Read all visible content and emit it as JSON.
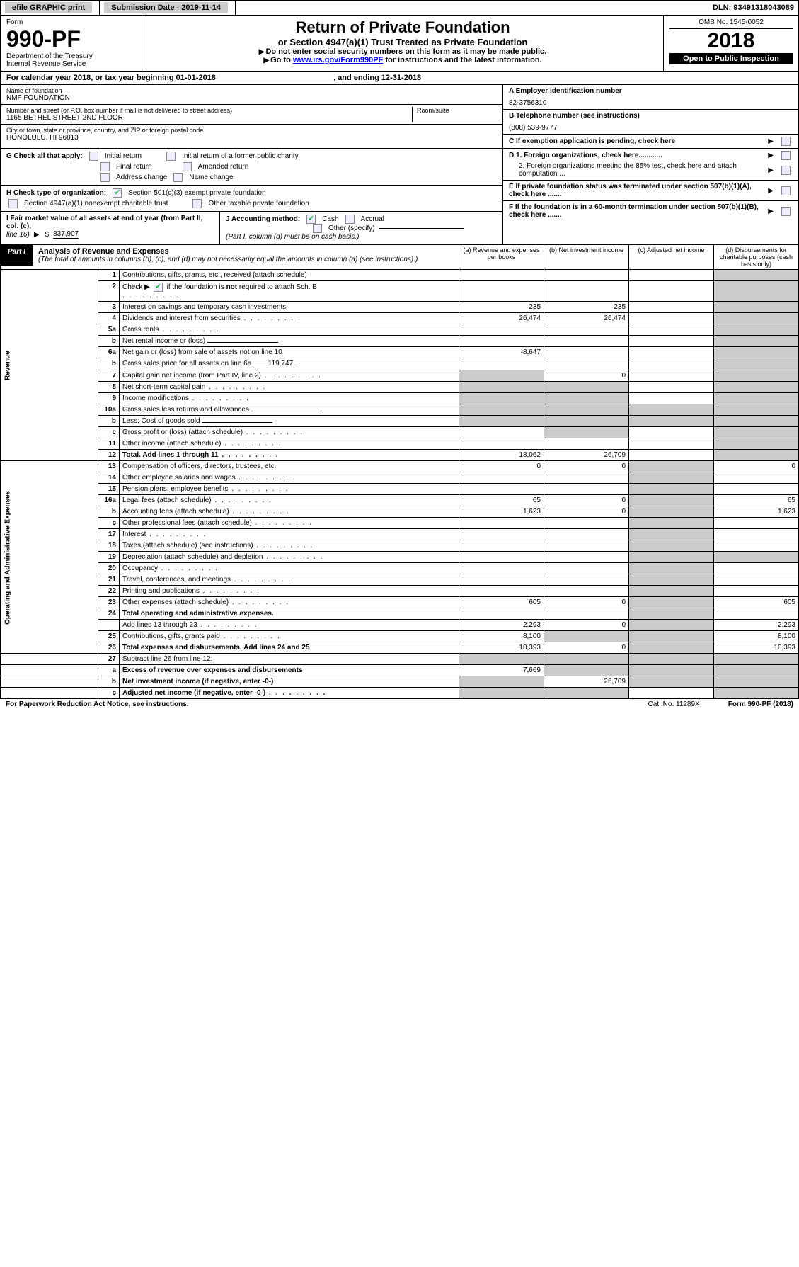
{
  "topbar": {
    "efile": "efile GRAPHIC print",
    "submission_label": "Submission Date - 2019-11-14",
    "dln": "DLN: 93491318043089"
  },
  "header": {
    "form_word": "Form",
    "form_number": "990-PF",
    "dept": "Department of the Treasury",
    "irs": "Internal Revenue Service",
    "title": "Return of Private Foundation",
    "subtitle": "or Section 4947(a)(1) Trust Treated as Private Foundation",
    "instr1": "Do not enter social security numbers on this form as it may be made public.",
    "instr2_pre": "Go to ",
    "instr2_link": "www.irs.gov/Form990PF",
    "instr2_post": " for instructions and the latest information.",
    "omb": "OMB No. 1545-0052",
    "year": "2018",
    "open": "Open to Public Inspection"
  },
  "calendar": {
    "pre": "For calendar year 2018, or tax year beginning ",
    "begin": "01-01-2018",
    "mid": ", and ending ",
    "end": "12-31-2018"
  },
  "foundation": {
    "name_lbl": "Name of foundation",
    "name": "NMF FOUNDATION",
    "addr_lbl": "Number and street (or P.O. box number if mail is not delivered to street address)",
    "addr": "1165 BETHEL STREET 2ND FLOOR",
    "room_lbl": "Room/suite",
    "city_lbl": "City or town, state or province, country, and ZIP or foreign postal code",
    "city": "HONOLULU, HI  96813"
  },
  "right": {
    "a_lbl": "A Employer identification number",
    "a_val": "82-3756310",
    "b_lbl": "B Telephone number (see instructions)",
    "b_val": "(808) 539-9777",
    "c_lbl": "C If exemption application is pending, check here",
    "d1": "D 1. Foreign organizations, check here............",
    "d2": "2. Foreign organizations meeting the 85% test, check here and attach computation ...",
    "e": "E  If private foundation status was terminated under section 507(b)(1)(A), check here .......",
    "f": "F  If the foundation is in a 60-month termination under section 507(b)(1)(B), check here ......."
  },
  "g": {
    "lbl": "G Check all that apply:",
    "initial": "Initial return",
    "initial_former": "Initial return of a former public charity",
    "final": "Final return",
    "amended": "Amended return",
    "addr_change": "Address change",
    "name_change": "Name change"
  },
  "h": {
    "lbl": "H Check type of organization:",
    "opt1": "Section 501(c)(3) exempt private foundation",
    "opt2": "Section 4947(a)(1) nonexempt charitable trust",
    "opt3": "Other taxable private foundation"
  },
  "i": {
    "lbl": "I Fair market value of all assets at end of year (from Part II, col. (c),",
    "line": "line 16)",
    "val": "837,907"
  },
  "j": {
    "lbl": "J Accounting method:",
    "cash": "Cash",
    "accrual": "Accrual",
    "other": "Other (specify)",
    "note": "(Part I, column (d) must be on cash basis.)"
  },
  "part1": {
    "tag": "Part I",
    "title": "Analysis of Revenue and Expenses",
    "note": "(The total of amounts in columns (b), (c), and (d) may not necessarily equal the amounts in column (a) (see instructions).)",
    "col_a": "(a)   Revenue and expenses per books",
    "col_b": "(b)  Net investment income",
    "col_c": "(c)  Adjusted net income",
    "col_d": "(d)  Disbursements for charitable purposes (cash basis only)"
  },
  "sections": {
    "revenue": "Revenue",
    "expenses": "Operating and Administrative Expenses"
  },
  "rows": [
    {
      "n": "1",
      "d": "Contributions, gifts, grants, etc., received (attach schedule)",
      "a": "",
      "b": "",
      "c": "",
      "dd": "",
      "sc": false
    },
    {
      "n": "2",
      "d": "Check ▶ ☑ if the foundation is not required to attach Sch. B",
      "a": "",
      "b": "",
      "c": "",
      "dd": "",
      "sc": false,
      "dotsRow": true
    },
    {
      "n": "3",
      "d": "Interest on savings and temporary cash investments",
      "a": "235",
      "b": "235",
      "c": "",
      "dd": "",
      "sc": false
    },
    {
      "n": "4",
      "d": "Dividends and interest from securities",
      "a": "26,474",
      "b": "26,474",
      "c": "",
      "dd": "",
      "sc": false,
      "dots": true
    },
    {
      "n": "5a",
      "d": "Gross rents",
      "a": "",
      "b": "",
      "c": "",
      "dd": "",
      "sc": false,
      "dots": true
    },
    {
      "n": "b",
      "d": "Net rental income or (loss)",
      "a": "",
      "b": "",
      "c": "",
      "dd": "",
      "sc": false,
      "inlineBlank": true
    },
    {
      "n": "6a",
      "d": "Net gain or (loss) from sale of assets not on line 10",
      "a": "-8,647",
      "b": "",
      "c": "",
      "dd": "",
      "sc": false
    },
    {
      "n": "b",
      "d": "Gross sales price for all assets on line 6a",
      "a": "",
      "b": "",
      "c": "",
      "dd": "",
      "sc": false,
      "inlineVal": "119,747"
    },
    {
      "n": "7",
      "d": "Capital gain net income (from Part IV, line 2)",
      "a": "",
      "b": "0",
      "c": "",
      "dd": "",
      "sc": false,
      "dots": true,
      "shadeA": true
    },
    {
      "n": "8",
      "d": "Net short-term capital gain",
      "a": "",
      "b": "",
      "c": "",
      "dd": "",
      "sc": false,
      "dots": true,
      "shadeA": true,
      "shadeB": true
    },
    {
      "n": "9",
      "d": "Income modifications",
      "a": "",
      "b": "",
      "c": "",
      "dd": "",
      "sc": false,
      "dots": true,
      "shadeA": true,
      "shadeB": true
    },
    {
      "n": "10a",
      "d": "Gross sales less returns and allowances",
      "a": "",
      "b": "",
      "c": "",
      "dd": "",
      "sc": false,
      "inlineBlank": true,
      "shadeAll": true
    },
    {
      "n": "b",
      "d": "Less: Cost of goods sold",
      "a": "",
      "b": "",
      "c": "",
      "dd": "",
      "sc": false,
      "dots": true,
      "inlineBlank": true,
      "shadeAll": true
    },
    {
      "n": "c",
      "d": "Gross profit or (loss) (attach schedule)",
      "a": "",
      "b": "",
      "c": "",
      "dd": "",
      "sc": false,
      "dots": true,
      "shadeB": true
    },
    {
      "n": "11",
      "d": "Other income (attach schedule)",
      "a": "",
      "b": "",
      "c": "",
      "dd": "",
      "sc": false,
      "dots": true
    },
    {
      "n": "12",
      "d": "Total. Add lines 1 through 11",
      "a": "18,062",
      "b": "26,709",
      "c": "",
      "dd": "",
      "sc": false,
      "bold": true,
      "dots": true
    }
  ],
  "exp_rows": [
    {
      "n": "13",
      "d": "Compensation of officers, directors, trustees, etc.",
      "a": "0",
      "b": "0",
      "c": "",
      "dd": "0"
    },
    {
      "n": "14",
      "d": "Other employee salaries and wages",
      "dots": true
    },
    {
      "n": "15",
      "d": "Pension plans, employee benefits",
      "dots": true
    },
    {
      "n": "16a",
      "d": "Legal fees (attach schedule)",
      "a": "65",
      "b": "0",
      "dd": "65",
      "dots": true
    },
    {
      "n": "b",
      "d": "Accounting fees (attach schedule)",
      "a": "1,623",
      "b": "0",
      "dd": "1,623",
      "dots": true
    },
    {
      "n": "c",
      "d": "Other professional fees (attach schedule)",
      "dots": true
    },
    {
      "n": "17",
      "d": "Interest",
      "dots": true
    },
    {
      "n": "18",
      "d": "Taxes (attach schedule) (see instructions)",
      "dots": true
    },
    {
      "n": "19",
      "d": "Depreciation (attach schedule) and depletion",
      "dots": true,
      "shadeD": true
    },
    {
      "n": "20",
      "d": "Occupancy",
      "dots": true
    },
    {
      "n": "21",
      "d": "Travel, conferences, and meetings",
      "dots": true
    },
    {
      "n": "22",
      "d": "Printing and publications",
      "dots": true
    },
    {
      "n": "23",
      "d": "Other expenses (attach schedule)",
      "a": "605",
      "b": "0",
      "dd": "605",
      "dots": true
    },
    {
      "n": "24",
      "d": "Total operating and administrative expenses.",
      "bold": true
    },
    {
      "n": "",
      "d": "Add lines 13 through 23",
      "a": "2,293",
      "b": "0",
      "dd": "2,293",
      "dots": true
    },
    {
      "n": "25",
      "d": "Contributions, gifts, grants paid",
      "a": "8,100",
      "dd": "8,100",
      "dots": true,
      "shadeB": true,
      "shadeC": true
    },
    {
      "n": "26",
      "d": "Total expenses and disbursements. Add lines 24 and 25",
      "a": "10,393",
      "b": "0",
      "dd": "10,393",
      "bold": true
    }
  ],
  "bottom_rows": [
    {
      "n": "27",
      "d": "Subtract line 26 from line 12:",
      "shadeAll": true
    },
    {
      "n": "a",
      "d": "Excess of revenue over expenses and disbursements",
      "a": "7,669",
      "bold": true,
      "shadeBCD": true
    },
    {
      "n": "b",
      "d": "Net investment income (if negative, enter -0-)",
      "b": "26,709",
      "bold": true,
      "shadeACD": true
    },
    {
      "n": "c",
      "d": "Adjusted net income (if negative, enter -0-)",
      "bold": true,
      "dots": true,
      "shadeABD": true
    }
  ],
  "footer": {
    "left": "For Paperwork Reduction Act Notice, see instructions.",
    "cat": "Cat. No. 11289X",
    "right": "Form 990-PF (2018)"
  }
}
